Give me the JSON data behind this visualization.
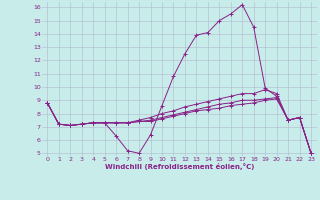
{
  "xlabel": "Windchill (Refroidissement éolien,°C)",
  "background_color": "#c8ecea",
  "grid_color": "#b0b8cc",
  "line_color": "#882288",
  "xlim": [
    -0.5,
    23.5
  ],
  "ylim": [
    4.8,
    16.4
  ],
  "xticks": [
    0,
    1,
    2,
    3,
    4,
    5,
    6,
    7,
    8,
    9,
    10,
    11,
    12,
    13,
    14,
    15,
    16,
    17,
    18,
    19,
    20,
    21,
    22,
    23
  ],
  "yticks": [
    5,
    6,
    7,
    8,
    9,
    10,
    11,
    12,
    13,
    14,
    15,
    16
  ],
  "series1_x": [
    0,
    1,
    2,
    3,
    4,
    5,
    6,
    7,
    8,
    9,
    10,
    11,
    12,
    13,
    14,
    15,
    16,
    17,
    18,
    19,
    20,
    21,
    22,
    23
  ],
  "series1_y": [
    8.8,
    7.2,
    7.1,
    7.2,
    7.3,
    7.3,
    6.3,
    5.2,
    5.0,
    6.4,
    8.6,
    10.8,
    12.5,
    13.9,
    14.1,
    15.0,
    15.5,
    16.2,
    14.5,
    9.9,
    9.3,
    7.5,
    7.7,
    5.0
  ],
  "series2_x": [
    0,
    1,
    2,
    3,
    4,
    5,
    6,
    7,
    8,
    9,
    10,
    11,
    12,
    13,
    14,
    15,
    16,
    17,
    18,
    19,
    20,
    21,
    22,
    23
  ],
  "series2_y": [
    8.8,
    7.2,
    7.1,
    7.2,
    7.3,
    7.3,
    7.3,
    7.3,
    7.5,
    7.7,
    8.0,
    8.2,
    8.5,
    8.7,
    8.9,
    9.1,
    9.3,
    9.5,
    9.5,
    9.8,
    9.5,
    7.5,
    7.7,
    5.0
  ],
  "series3_x": [
    0,
    1,
    2,
    3,
    4,
    5,
    6,
    7,
    8,
    9,
    10,
    11,
    12,
    13,
    14,
    15,
    16,
    17,
    18,
    19,
    20,
    21,
    22,
    23
  ],
  "series3_y": [
    8.8,
    7.2,
    7.1,
    7.2,
    7.3,
    7.3,
    7.3,
    7.3,
    7.4,
    7.5,
    7.7,
    7.9,
    8.1,
    8.3,
    8.5,
    8.7,
    8.8,
    9.0,
    9.0,
    9.1,
    9.2,
    7.5,
    7.7,
    5.0
  ],
  "series4_x": [
    0,
    1,
    2,
    3,
    4,
    5,
    6,
    7,
    8,
    9,
    10,
    11,
    12,
    13,
    14,
    15,
    16,
    17,
    18,
    19,
    20,
    21,
    22,
    23
  ],
  "series4_y": [
    8.8,
    7.2,
    7.1,
    7.2,
    7.3,
    7.3,
    7.3,
    7.3,
    7.4,
    7.4,
    7.6,
    7.8,
    8.0,
    8.2,
    8.3,
    8.4,
    8.6,
    8.7,
    8.8,
    9.0,
    9.1,
    7.5,
    7.7,
    5.0
  ]
}
